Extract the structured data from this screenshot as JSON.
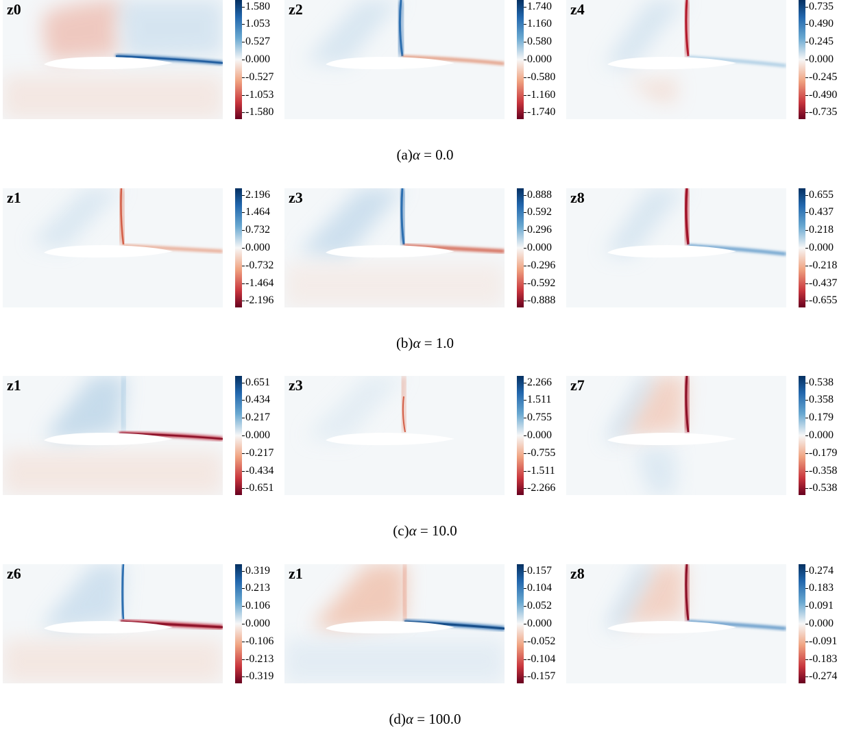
{
  "rows": [
    {
      "caption_prefix": "(a)",
      "alpha_symbol": "α",
      "caption_eq": " = 0.0",
      "panels": [
        {
          "label": "z0",
          "ticks": [
            "1.580",
            "1.053",
            "0.527",
            "0.000",
            "-0.527",
            "-1.053",
            "-1.580"
          ]
        },
        {
          "label": "z2",
          "ticks": [
            "1.740",
            "1.160",
            "0.580",
            "0.000",
            "-0.580",
            "-1.160",
            "-1.740"
          ]
        },
        {
          "label": "z4",
          "ticks": [
            "0.735",
            "0.490",
            "0.245",
            "0.000",
            "-0.245",
            "-0.490",
            "-0.735"
          ]
        }
      ]
    },
    {
      "caption_prefix": "(b)",
      "alpha_symbol": "α",
      "caption_eq": " = 1.0",
      "panels": [
        {
          "label": "z1",
          "ticks": [
            "2.196",
            "1.464",
            "0.732",
            "0.000",
            "-0.732",
            "-1.464",
            "-2.196"
          ]
        },
        {
          "label": "z3",
          "ticks": [
            "0.888",
            "0.592",
            "0.296",
            "0.000",
            "-0.296",
            "-0.592",
            "-0.888"
          ]
        },
        {
          "label": "z8",
          "ticks": [
            "0.655",
            "0.437",
            "0.218",
            "0.000",
            "-0.218",
            "-0.437",
            "-0.655"
          ]
        }
      ]
    },
    {
      "caption_prefix": "(c)",
      "alpha_symbol": "α",
      "caption_eq": " = 10.0",
      "panels": [
        {
          "label": "z1",
          "ticks": [
            "0.651",
            "0.434",
            "0.217",
            "0.000",
            "-0.217",
            "-0.434",
            "-0.651"
          ]
        },
        {
          "label": "z3",
          "ticks": [
            "2.266",
            "1.511",
            "0.755",
            "0.000",
            "-0.755",
            "-1.511",
            "-2.266"
          ]
        },
        {
          "label": "z7",
          "ticks": [
            "0.538",
            "0.358",
            "0.179",
            "0.000",
            "-0.179",
            "-0.358",
            "-0.538"
          ]
        }
      ]
    },
    {
      "caption_prefix": "(d)",
      "alpha_symbol": "α",
      "caption_eq": " = 100.0",
      "panels": [
        {
          "label": "z6",
          "ticks": [
            "0.319",
            "0.213",
            "0.106",
            "0.000",
            "-0.106",
            "-0.213",
            "-0.319"
          ]
        },
        {
          "label": "z1",
          "ticks": [
            "0.157",
            "0.104",
            "0.052",
            "0.000",
            "-0.052",
            "-0.104",
            "-0.157"
          ]
        },
        {
          "label": "z8",
          "ticks": [
            "0.274",
            "0.183",
            "0.091",
            "0.000",
            "-0.091",
            "-0.183",
            "-0.274"
          ]
        }
      ]
    }
  ],
  "colors": {
    "positive": "#2166ac",
    "negative": "#b2182b",
    "neutral": "#f7f7f7"
  }
}
